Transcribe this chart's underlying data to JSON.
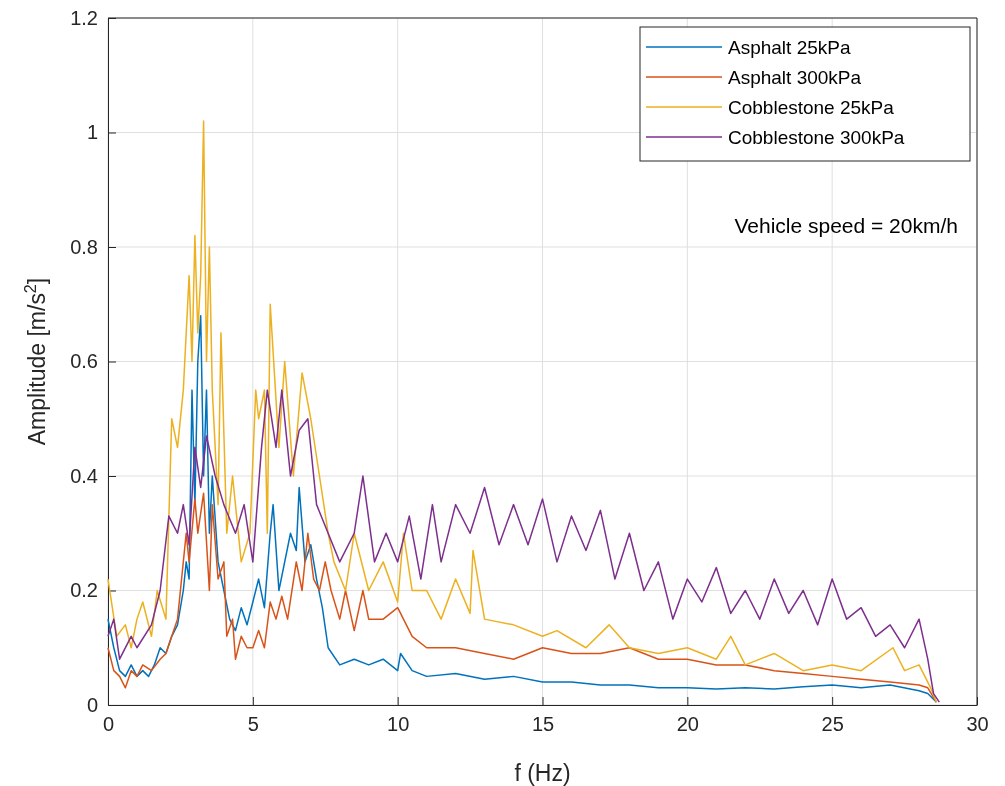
{
  "chart_data": {
    "type": "line",
    "xlabel": "f (Hz)",
    "ylabel": "Amplitude [m/s$^{2}$]",
    "xlim": [
      0,
      30
    ],
    "ylim": [
      0,
      1.2
    ],
    "xticks": [
      0,
      5,
      10,
      15,
      20,
      25,
      30
    ],
    "yticks": [
      0,
      0.2,
      0.4,
      0.6,
      0.8,
      1,
      1.2
    ],
    "grid": true,
    "legend": "top right",
    "marker": "none",
    "line_style": "solid",
    "annotations": [
      "Vehicle speed = 20km/h"
    ],
    "series": [
      {
        "name": "Asphalt 25kPa",
        "color": "#0072bd",
        "x": [
          0,
          0.2,
          0.4,
          0.6,
          0.8,
          1,
          1.2,
          1.4,
          1.6,
          1.8,
          2,
          2.2,
          2.4,
          2.6,
          2.7,
          2.8,
          2.9,
          3,
          3.1,
          3.2,
          3.3,
          3.4,
          3.5,
          3.6,
          3.8,
          4,
          4.2,
          4.4,
          4.6,
          4.8,
          5,
          5.2,
          5.4,
          5.6,
          5.7,
          5.9,
          6.1,
          6.3,
          6.5,
          6.6,
          6.8,
          7,
          7.2,
          7.4,
          7.6,
          8,
          8.5,
          9,
          9.5,
          10,
          10.1,
          10.5,
          11,
          12,
          13,
          14,
          15,
          16,
          17,
          18,
          19,
          20,
          21,
          22,
          23,
          24,
          25,
          26,
          27,
          28,
          28.3,
          28.5,
          28.6
        ],
        "values": [
          0.15,
          0.1,
          0.06,
          0.05,
          0.07,
          0.05,
          0.06,
          0.05,
          0.07,
          0.1,
          0.09,
          0.12,
          0.14,
          0.2,
          0.25,
          0.22,
          0.55,
          0.35,
          0.6,
          0.68,
          0.4,
          0.55,
          0.3,
          0.4,
          0.25,
          0.2,
          0.15,
          0.13,
          0.17,
          0.14,
          0.18,
          0.22,
          0.17,
          0.3,
          0.35,
          0.2,
          0.25,
          0.3,
          0.27,
          0.38,
          0.25,
          0.28,
          0.22,
          0.17,
          0.1,
          0.07,
          0.08,
          0.07,
          0.08,
          0.06,
          0.09,
          0.06,
          0.05,
          0.055,
          0.045,
          0.05,
          0.04,
          0.04,
          0.035,
          0.035,
          0.03,
          0.03,
          0.028,
          0.03,
          0.028,
          0.032,
          0.035,
          0.03,
          0.035,
          0.025,
          0.02,
          0.01,
          0.005
        ]
      },
      {
        "name": "Asphalt 300kPa",
        "color": "#d95319",
        "x": [
          0,
          0.2,
          0.4,
          0.6,
          0.8,
          1,
          1.2,
          1.5,
          1.8,
          2,
          2.2,
          2.4,
          2.5,
          2.7,
          2.8,
          3,
          3.1,
          3.3,
          3.5,
          3.6,
          3.8,
          4,
          4.1,
          4.3,
          4.4,
          4.6,
          4.8,
          5,
          5.2,
          5.4,
          5.6,
          5.8,
          6,
          6.2,
          6.5,
          6.7,
          6.9,
          7.1,
          7.3,
          7.5,
          7.7,
          8,
          8.2,
          8.5,
          8.8,
          9,
          9.5,
          10,
          10.5,
          11,
          12,
          13,
          14,
          15,
          16,
          17,
          18,
          19,
          20,
          21,
          22,
          23,
          24,
          25,
          26,
          27,
          28,
          28.3,
          28.6
        ],
        "values": [
          0.1,
          0.06,
          0.05,
          0.03,
          0.06,
          0.05,
          0.07,
          0.06,
          0.08,
          0.09,
          0.12,
          0.15,
          0.2,
          0.3,
          0.25,
          0.36,
          0.3,
          0.37,
          0.2,
          0.35,
          0.22,
          0.25,
          0.12,
          0.15,
          0.08,
          0.12,
          0.1,
          0.1,
          0.13,
          0.1,
          0.18,
          0.15,
          0.19,
          0.15,
          0.25,
          0.2,
          0.3,
          0.22,
          0.2,
          0.25,
          0.2,
          0.15,
          0.2,
          0.13,
          0.2,
          0.15,
          0.15,
          0.17,
          0.12,
          0.1,
          0.1,
          0.09,
          0.08,
          0.1,
          0.09,
          0.09,
          0.1,
          0.08,
          0.08,
          0.07,
          0.07,
          0.06,
          0.055,
          0.05,
          0.045,
          0.04,
          0.035,
          0.03,
          0.005
        ]
      },
      {
        "name": "Cobblestone 25kPa",
        "color": "#edb120",
        "x": [
          0,
          0.3,
          0.6,
          0.8,
          1,
          1.2,
          1.5,
          1.7,
          2,
          2.2,
          2.4,
          2.6,
          2.8,
          2.9,
          3,
          3.1,
          3.2,
          3.3,
          3.4,
          3.5,
          3.6,
          3.8,
          3.9,
          4.1,
          4.3,
          4.6,
          4.9,
          5.1,
          5.2,
          5.4,
          5.5,
          5.6,
          5.9,
          6.1,
          6.4,
          6.7,
          7,
          7.3,
          7.6,
          7.8,
          8.2,
          8.5,
          9,
          9.5,
          10,
          10.2,
          10.5,
          11,
          11.5,
          12,
          12.5,
          12.6,
          13,
          14,
          15,
          15.5,
          16.5,
          17.3,
          18,
          19,
          20,
          21,
          21.5,
          22,
          23,
          24,
          25,
          26,
          27.1,
          27.5,
          28,
          28.4,
          28.6
        ],
        "values": [
          0.22,
          0.12,
          0.14,
          0.1,
          0.15,
          0.18,
          0.12,
          0.2,
          0.15,
          0.5,
          0.45,
          0.55,
          0.75,
          0.6,
          0.82,
          0.65,
          0.75,
          1.02,
          0.6,
          0.8,
          0.55,
          0.35,
          0.65,
          0.3,
          0.4,
          0.25,
          0.3,
          0.55,
          0.5,
          0.55,
          0.3,
          0.7,
          0.45,
          0.6,
          0.4,
          0.58,
          0.5,
          0.4,
          0.3,
          0.25,
          0.2,
          0.3,
          0.2,
          0.25,
          0.18,
          0.3,
          0.2,
          0.2,
          0.15,
          0.22,
          0.16,
          0.27,
          0.15,
          0.14,
          0.12,
          0.13,
          0.1,
          0.14,
          0.1,
          0.09,
          0.1,
          0.08,
          0.12,
          0.07,
          0.09,
          0.06,
          0.07,
          0.06,
          0.1,
          0.06,
          0.07,
          0.03,
          0.005
        ]
      },
      {
        "name": "Cobblestone 300kPa",
        "color": "#7e2f8e",
        "x": [
          0,
          0.2,
          0.4,
          0.8,
          1,
          1.5,
          1.8,
          2.1,
          2.4,
          2.6,
          2.8,
          3,
          3.2,
          3.4,
          3.7,
          4,
          4.4,
          4.7,
          5,
          5.3,
          5.5,
          5.8,
          6,
          6.3,
          6.6,
          6.9,
          7.2,
          7.6,
          8,
          8.5,
          8.8,
          9.2,
          9.6,
          10,
          10.4,
          10.8,
          11.2,
          11.5,
          12,
          12.5,
          13,
          13.5,
          14,
          14.5,
          15,
          15.5,
          16,
          16.5,
          17,
          17.5,
          18,
          18.5,
          19,
          19.5,
          20,
          20.5,
          21,
          21.5,
          22,
          22.5,
          23,
          23.5,
          24,
          24.5,
          25,
          25.5,
          26,
          26.5,
          27,
          27.5,
          28,
          28.3,
          28.5,
          28.7
        ],
        "values": [
          0.12,
          0.15,
          0.08,
          0.12,
          0.1,
          0.14,
          0.2,
          0.33,
          0.3,
          0.35,
          0.28,
          0.45,
          0.38,
          0.47,
          0.4,
          0.35,
          0.3,
          0.35,
          0.25,
          0.45,
          0.55,
          0.45,
          0.55,
          0.4,
          0.48,
          0.5,
          0.35,
          0.3,
          0.25,
          0.3,
          0.4,
          0.25,
          0.3,
          0.25,
          0.33,
          0.22,
          0.35,
          0.25,
          0.35,
          0.3,
          0.38,
          0.28,
          0.35,
          0.28,
          0.36,
          0.25,
          0.33,
          0.27,
          0.34,
          0.22,
          0.3,
          0.2,
          0.25,
          0.15,
          0.22,
          0.18,
          0.24,
          0.16,
          0.2,
          0.15,
          0.22,
          0.16,
          0.2,
          0.14,
          0.22,
          0.15,
          0.17,
          0.12,
          0.14,
          0.1,
          0.15,
          0.08,
          0.02,
          0.005
        ]
      }
    ]
  }
}
